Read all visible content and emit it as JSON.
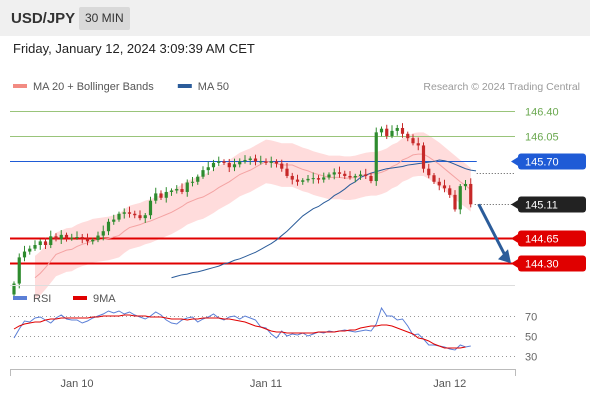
{
  "header": {
    "symbol": "USD/JPY",
    "timeframe": "30 MIN"
  },
  "datetime": "Friday, January 12, 2024 3:09:39 AM CET",
  "legend": [
    {
      "label": "MA 20 + Bollinger Bands",
      "color": "#f28b82"
    },
    {
      "label": "MA 50",
      "color": "#2b5c9a"
    }
  ],
  "credit": "Research © 2024 Trading Central",
  "price_axis": {
    "min": 144.0,
    "max": 146.6
  },
  "levels": [
    {
      "label": "146.40",
      "value": 146.4,
      "style": "resistance",
      "color": "#99c47a"
    },
    {
      "label": "146.05",
      "value": 146.05,
      "style": "resistance",
      "color": "#99c47a"
    },
    {
      "label": "145.70",
      "value": 145.7,
      "style": "pivot",
      "color": "#1f5bd6"
    },
    {
      "label": "145.11",
      "value": 145.11,
      "style": "current",
      "color": "#222222"
    },
    {
      "label": "144.65",
      "value": 144.65,
      "style": "target",
      "color": "#e00000"
    },
    {
      "label": "144.30",
      "value": 144.3,
      "style": "target",
      "color": "#e00000"
    }
  ],
  "rsi_legend": [
    {
      "label": "RSI",
      "color": "#5b7fd6"
    },
    {
      "label": "9MA",
      "color": "#e00000"
    }
  ],
  "rsi_axis": {
    "min": 20,
    "max": 80,
    "ticks": [
      "70",
      "50",
      "30"
    ]
  },
  "time_labels": [
    "Jan 10",
    "Jan 11",
    "Jan 12"
  ],
  "colors": {
    "up": "#2e8b2e",
    "down": "#c62828",
    "band": "#ffd6d6",
    "ma20": "#f4a3a3",
    "ma50": "#2b5c9a",
    "forecast": "#2b5c9a"
  },
  "chart_data": {
    "type": "candlestick",
    "ylim": [
      144.0,
      146.6
    ],
    "bars": 88,
    "close": [
      144.02,
      144.38,
      144.46,
      144.5,
      144.55,
      144.6,
      144.55,
      144.67,
      144.63,
      144.69,
      144.65,
      144.65,
      144.66,
      144.64,
      144.6,
      144.62,
      144.68,
      144.74,
      144.87,
      144.9,
      144.98,
      145.0,
      144.98,
      144.96,
      144.92,
      144.96,
      145.16,
      145.26,
      145.2,
      145.28,
      145.3,
      145.32,
      145.28,
      145.41,
      145.42,
      145.49,
      145.58,
      145.62,
      145.68,
      145.7,
      145.68,
      145.62,
      145.66,
      145.7,
      145.72,
      145.74,
      145.7,
      145.7,
      145.68,
      145.7,
      145.67,
      145.6,
      145.5,
      145.45,
      145.42,
      145.44,
      145.46,
      145.47,
      145.45,
      145.48,
      145.52,
      145.55,
      145.53,
      145.5,
      145.48,
      145.5,
      145.52,
      145.5,
      145.43,
      146.1,
      146.15,
      146.05,
      146.12,
      146.16,
      146.08,
      146.02,
      145.95,
      145.92,
      145.6,
      145.51,
      145.42,
      145.37,
      145.33,
      145.24,
      145.04,
      145.36,
      145.39,
      145.11
    ],
    "ma20": [
      144.1,
      144.16,
      144.24,
      144.33,
      144.42,
      144.45,
      144.48,
      144.49,
      144.53,
      144.56,
      144.58,
      144.61,
      144.62,
      144.63,
      144.64,
      144.66,
      144.68,
      144.74,
      144.79,
      144.81,
      144.83,
      144.86,
      144.88,
      144.91,
      144.94,
      144.97,
      145.0,
      145.04,
      145.08,
      145.13,
      145.16,
      145.19,
      145.21,
      145.25,
      145.29,
      145.34,
      145.38,
      145.42,
      145.47,
      145.52,
      145.55,
      145.58,
      145.62,
      145.66,
      145.7,
      145.69,
      145.67,
      145.65,
      145.65,
      145.65,
      145.62,
      145.59,
      145.57,
      145.54,
      145.52,
      145.5,
      145.48,
      145.48,
      145.48,
      145.47,
      145.47,
      145.48,
      145.5,
      145.52,
      145.53,
      145.53,
      145.55,
      145.58,
      145.63,
      145.66,
      145.72,
      145.75,
      145.79,
      145.8,
      145.8,
      145.76,
      145.71,
      145.66,
      145.6,
      145.54,
      145.48,
      145.42,
      145.37,
      145.31
    ],
    "ma50": [
      144.1,
      144.12,
      144.14,
      144.15,
      144.17,
      144.18,
      144.2,
      144.22,
      144.24,
      144.26,
      144.29,
      144.31,
      144.34,
      144.36,
      144.39,
      144.42,
      144.45,
      144.49,
      144.53,
      144.57,
      144.62,
      144.68,
      144.74,
      144.81,
      144.88,
      144.95,
      145.0,
      145.05,
      145.08,
      145.13,
      145.17,
      145.23,
      145.27,
      145.32,
      145.38,
      145.42,
      145.48,
      145.51,
      145.54,
      145.56,
      145.58,
      145.6,
      145.61,
      145.62,
      145.63,
      145.65,
      145.66,
      145.67,
      145.68,
      145.69,
      145.7,
      145.72,
      145.71,
      145.69,
      145.66,
      145.63,
      145.6,
      145.58,
      145.57
    ],
    "rsi": [
      48,
      57,
      65,
      64,
      68,
      69,
      66,
      63,
      68,
      71,
      67,
      66,
      66,
      63,
      65,
      68,
      70,
      72,
      75,
      73,
      75,
      72,
      74,
      71,
      69,
      67,
      70,
      74,
      71,
      66,
      63,
      62,
      66,
      68,
      69,
      64,
      67,
      69,
      72,
      68,
      66,
      69,
      70,
      67,
      70,
      68,
      66,
      59,
      58,
      52,
      48,
      55,
      50,
      52,
      51,
      53,
      50,
      52,
      54,
      53,
      55,
      54,
      55,
      56,
      55,
      54,
      55,
      56,
      55,
      62,
      78,
      70,
      70,
      66,
      67,
      60,
      51,
      52,
      47,
      41,
      41,
      40,
      39,
      37,
      36,
      41,
      39,
      40
    ],
    "rsi_ma9": [
      57,
      60,
      62,
      63,
      64,
      64,
      66,
      67,
      67,
      68,
      68,
      68,
      68,
      68,
      68,
      69,
      69,
      70,
      70,
      70,
      70,
      71,
      71,
      70,
      70,
      70,
      69,
      69,
      69,
      68,
      67,
      67,
      67,
      66,
      67,
      67,
      68,
      68,
      68,
      68,
      67,
      67,
      66,
      65,
      64,
      62,
      60,
      59,
      57,
      55,
      54,
      54,
      53,
      53,
      53,
      53,
      53,
      53,
      54,
      54,
      54,
      54,
      55,
      55,
      56,
      56,
      58,
      59,
      60,
      60,
      61,
      61,
      60,
      58,
      56,
      54,
      52,
      48,
      47,
      45,
      42,
      40,
      38,
      38,
      38,
      38,
      39
    ],
    "x_labels": [
      "Jan 10",
      "Jan 11",
      "Jan 12"
    ]
  }
}
